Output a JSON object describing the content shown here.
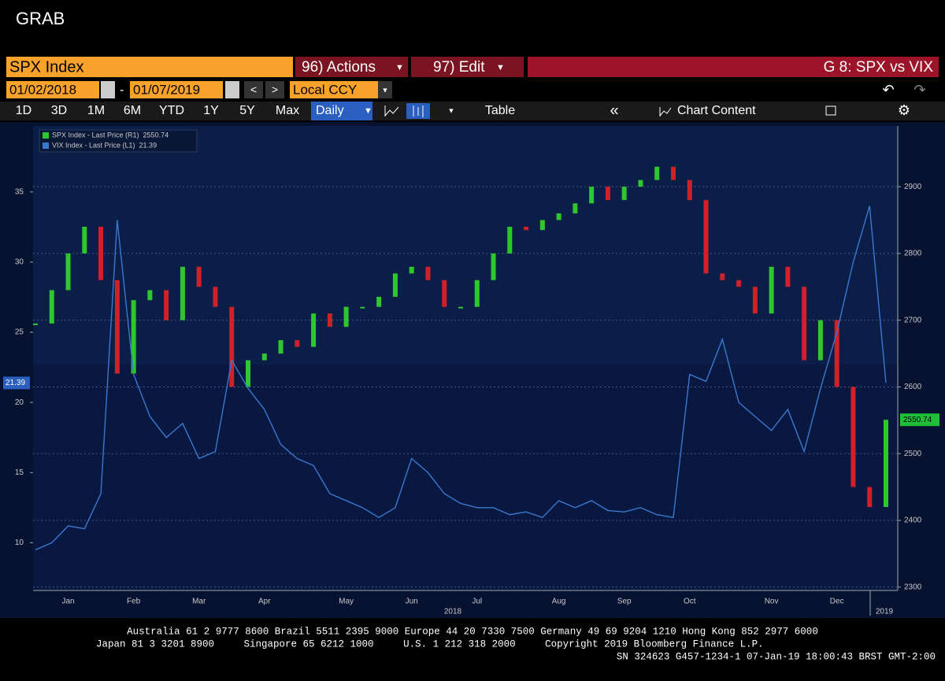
{
  "header": {
    "title": "GRAB"
  },
  "toolbar": {
    "security": "SPX Index",
    "actions": "96) Actions",
    "edit": "97) Edit",
    "chart_title": "G 8: SPX vs VIX",
    "start_date": "01/02/2018",
    "date_separator": "-",
    "end_date": "01/07/2019",
    "currency": "Local CCY",
    "periods": [
      "1D",
      "3D",
      "1M",
      "6M",
      "YTD",
      "1Y",
      "5Y",
      "Max"
    ],
    "frequency": "Daily",
    "table": "Table",
    "chart_content": "Chart Content"
  },
  "chart_data": {
    "type": "line",
    "categories": [
      null,
      null,
      "Jan",
      null,
      null,
      null,
      "Feb",
      null,
      null,
      null,
      "Mar",
      null,
      null,
      null,
      "Apr",
      null,
      null,
      null,
      null,
      "May",
      null,
      null,
      null,
      "Jun",
      null,
      null,
      null,
      "Jul",
      null,
      null,
      null,
      null,
      "Aug",
      null,
      null,
      null,
      "Sep",
      null,
      null,
      null,
      "Oct",
      null,
      null,
      null,
      null,
      "Nov",
      null,
      null,
      null,
      "Dec",
      null,
      null,
      null
    ],
    "year_labels": [
      "2018",
      "2019"
    ],
    "series": [
      {
        "name": "SPX Index - Last Price (R1)",
        "axis": "y2",
        "color": "#2ec82e",
        "down_color": "#d0202a",
        "values": [
          2695,
          2745,
          2800,
          2840,
          2760,
          2620,
          2730,
          2745,
          2700,
          2780,
          2750,
          2720,
          2600,
          2640,
          2650,
          2670,
          2660,
          2710,
          2690,
          2720,
          2720,
          2735,
          2770,
          2780,
          2760,
          2720,
          2720,
          2760,
          2800,
          2840,
          2835,
          2850,
          2860,
          2875,
          2900,
          2880,
          2900,
          2910,
          2930,
          2910,
          2880,
          2770,
          2760,
          2750,
          2710,
          2780,
          2750,
          2640,
          2700,
          2600,
          2450,
          2420,
          2550.74
        ],
        "value_labels": [
          null,
          null,
          null,
          null,
          null,
          null,
          null,
          null,
          null,
          null,
          null,
          null,
          null,
          null,
          null,
          null,
          null,
          null,
          null,
          null,
          null,
          null,
          null,
          null,
          null,
          null,
          null,
          null,
          null,
          null,
          null,
          null,
          null,
          null,
          null,
          null,
          null,
          null,
          null,
          null,
          null,
          null,
          null,
          null,
          null,
          null,
          null,
          null,
          null,
          null,
          null,
          null,
          "2550.74"
        ]
      },
      {
        "name": "VIX Index - Last Price (L1)",
        "axis": "y",
        "color": "#3a78d0",
        "values": [
          9.5,
          10.0,
          11.2,
          11.0,
          13.5,
          33.0,
          22.0,
          19.0,
          17.5,
          18.5,
          16.0,
          16.5,
          23.0,
          21.0,
          19.5,
          17.0,
          16.0,
          15.5,
          13.5,
          13.0,
          12.5,
          11.8,
          12.5,
          16.0,
          15.0,
          13.5,
          12.8,
          12.5,
          12.5,
          12.0,
          12.2,
          11.8,
          13.0,
          12.5,
          13.0,
          12.3,
          12.2,
          12.5,
          12.0,
          11.8,
          22.0,
          21.5,
          24.5,
          20.0,
          19.0,
          18.0,
          19.5,
          16.5,
          21.0,
          25.0,
          30.0,
          34.0,
          21.39
        ],
        "value_labels": [
          null,
          null,
          null,
          null,
          null,
          null,
          null,
          null,
          null,
          null,
          null,
          null,
          null,
          null,
          null,
          null,
          null,
          null,
          null,
          null,
          null,
          null,
          null,
          null,
          null,
          null,
          null,
          null,
          null,
          null,
          null,
          null,
          null,
          null,
          null,
          null,
          null,
          null,
          null,
          null,
          null,
          null,
          null,
          null,
          null,
          null,
          null,
          null,
          null,
          null,
          null,
          null,
          "21.39"
        ]
      }
    ],
    "ylim": [
      6.6,
      39.7
    ],
    "yticks": [
      10,
      15,
      20,
      25,
      30,
      35
    ],
    "y2lim": [
      2295,
      2991
    ],
    "y2ticks": [
      2300,
      2400,
      2500,
      2600,
      2700,
      2800,
      2900
    ],
    "grid": true
  },
  "footer": {
    "lines": [
      "Australia 61 2 9777 8600 Brazil 5511 2395 9000 Europe 44 20 7330 7500 Germany 49 69 9204 1210 Hong Kong 852 2977 6000",
      "Japan 81 3 3201 8900     Singapore 65 6212 1000     U.S. 1 212 318 2000     Copyright 2019 Bloomberg Finance L.P.",
      "SN 324623 G457-1234-1 07-Jan-19 18:00:43 BRST GMT-2:00"
    ]
  }
}
